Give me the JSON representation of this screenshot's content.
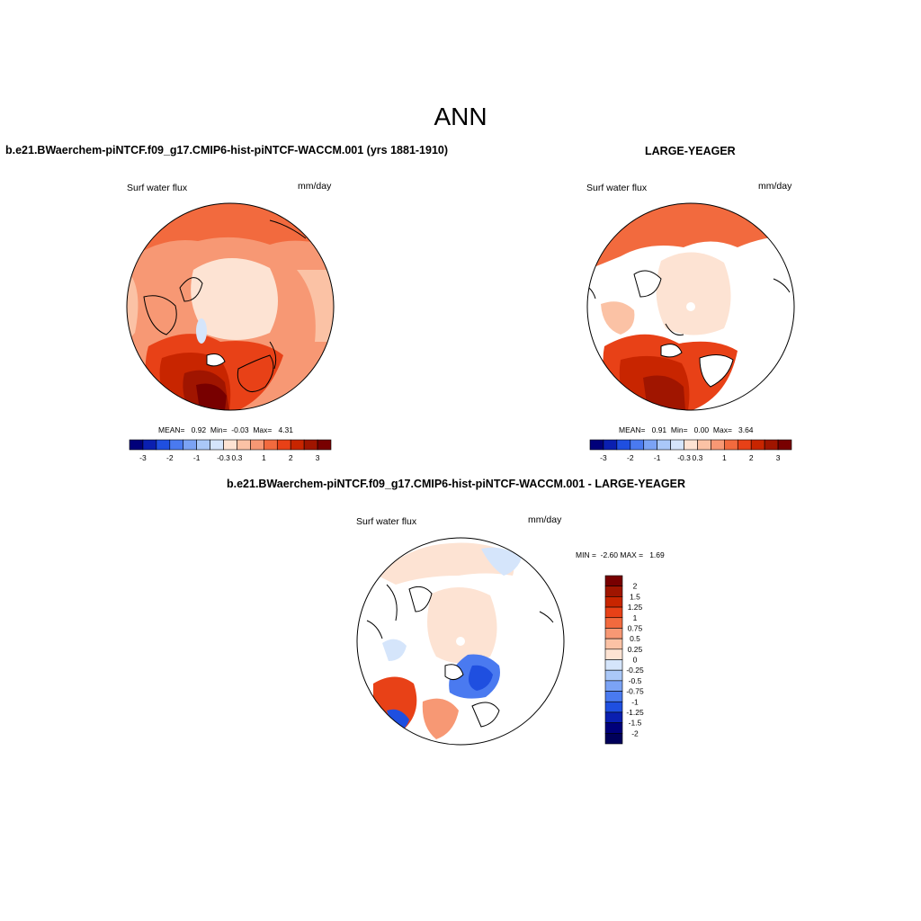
{
  "figure": {
    "main_title": "ANN"
  },
  "panels": [
    {
      "title": "b.e21.BWaerchem-piNTCF.f09_g17.CMIP6-hist-piNTCF-WACCM.001 (yrs 1881-1910)",
      "variable": "Surf water flux",
      "units": "mm/day",
      "stats": {
        "mean": "0.92",
        "min": "-0.03",
        "max": "4.31"
      },
      "stats_text": "MEAN=   0.92  Min=  -0.03  Max=   4.31"
    },
    {
      "title": "LARGE-YEAGER",
      "variable": "Surf water flux",
      "units": "mm/day",
      "stats": {
        "mean": "0.91",
        "min": "0.00",
        "max": "3.64"
      },
      "stats_text": "MEAN=   0.91  Min=   0.00  Max=   3.64"
    },
    {
      "title": "b.e21.BWaerchem-piNTCF.f09_g17.CMIP6-hist-piNTCF-WACCM.001 - LARGE-YEAGER",
      "variable": "Surf water flux",
      "units": "mm/day",
      "minmax_text": "MIN =  -2.60 MAX =   1.69"
    }
  ],
  "colorbar_abs": {
    "tick_labels": [
      "-3",
      "-2",
      "-1",
      "-0.3",
      "0.3",
      "1",
      "2",
      "3"
    ],
    "colors": [
      "#00007a",
      "#0a1fb0",
      "#1f4fe0",
      "#4a7af0",
      "#7ba3f5",
      "#aac8f8",
      "#d5e5fb",
      "#fde3d3",
      "#fbc2a5",
      "#f79874",
      "#f26a3e",
      "#e84117",
      "#c82500",
      "#a01500",
      "#780000"
    ]
  },
  "colorbar_diff": {
    "tick_labels": [
      "2",
      "1.5",
      "1.25",
      "1",
      "0.75",
      "0.5",
      "0.25",
      "0",
      "-0.25",
      "-0.5",
      "-0.75",
      "-1",
      "-1.25",
      "-1.5",
      "-2"
    ],
    "colors": [
      "#780000",
      "#a01500",
      "#c82500",
      "#e84117",
      "#f26a3e",
      "#f79874",
      "#fbc2a5",
      "#fde3d3",
      "#d5e5fb",
      "#aac8f8",
      "#7ba3f5",
      "#4a7af0",
      "#1f4fe0",
      "#0a1fb0",
      "#00007a",
      "#00005a"
    ]
  }
}
